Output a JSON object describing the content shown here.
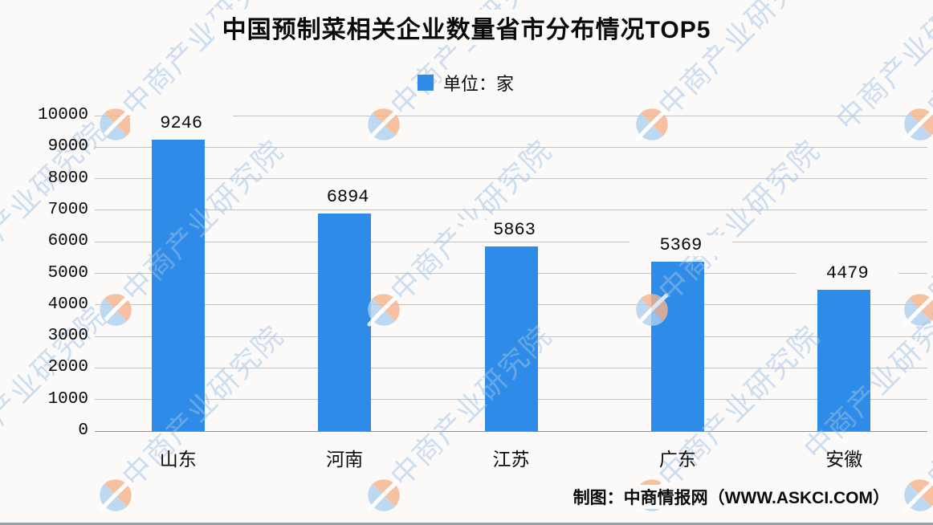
{
  "header": {
    "title": "中国预制菜相关企业数量省市分布情况TOP5"
  },
  "legend": {
    "label": "单位：家",
    "swatch_color": "#2e8ce8"
  },
  "chart_data": {
    "type": "bar",
    "title": "中国预制菜相关企业数量省市分布情况TOP5",
    "unit_label": "单位：家",
    "categories": [
      "山东",
      "河南",
      "江苏",
      "广东",
      "安徽"
    ],
    "values": [
      9246,
      6894,
      5863,
      5369,
      4479
    ],
    "ylim": [
      0,
      10000
    ],
    "ytick_interval": 1000,
    "ytick_labels": [
      "0",
      "1000",
      "2000",
      "3000",
      "4000",
      "5000",
      "6000",
      "7000",
      "8000",
      "9000",
      "10000"
    ],
    "bar_color": "#2e8ce8",
    "grid": true,
    "legend_position": "top-center",
    "xlabel": "",
    "ylabel": ""
  },
  "watermark": {
    "text": "中商产业研究院",
    "logo": "askci-ball-logo",
    "text_color": "#9fc2e6",
    "logo_blue": "#aed0f0",
    "logo_orange": "#f6b48c"
  },
  "footer": {
    "credit": "制图：中商情报网（WWW.ASKCI.COM）"
  }
}
